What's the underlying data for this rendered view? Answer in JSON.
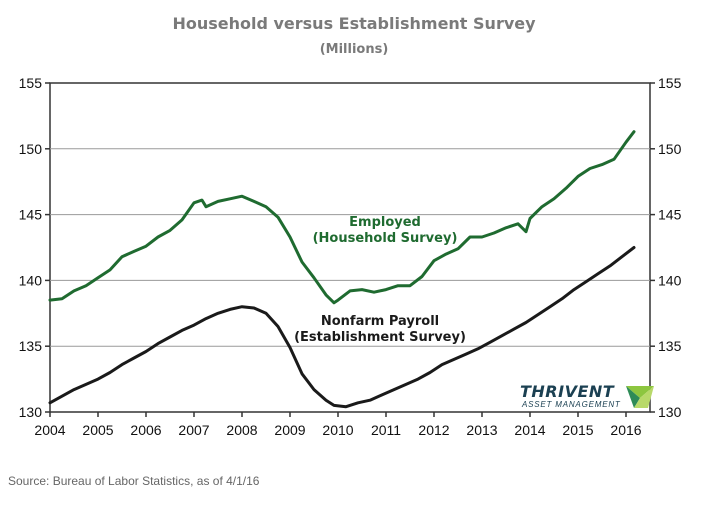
{
  "header": {
    "title": "Household versus Establishment Survey",
    "subtitle": "(Millions)"
  },
  "source": "Source: Bureau of Labor Statistics, as of 4/1/16",
  "logo": {
    "name": "THRIVENT",
    "tagline": "ASSET MANAGEMENT",
    "colors": [
      "#8dc63f",
      "#2e8b57",
      "#1b4052"
    ]
  },
  "chart_data": {
    "type": "line",
    "x_ticks": [
      "2004",
      "2005",
      "2006",
      "2007",
      "2008",
      "2009",
      "2010",
      "2011",
      "2012",
      "2013",
      "2014",
      "2015",
      "2016"
    ],
    "y_ticks": [
      130,
      135,
      140,
      145,
      150,
      155
    ],
    "ylim": [
      130,
      155
    ],
    "xlim": [
      "2004-01",
      "2016-07"
    ],
    "grid": "horizontal",
    "right_axis": true,
    "series": [
      {
        "name": "Employed\n(Household Survey)",
        "color": "#1f6b30",
        "points": [
          [
            "2004-01",
            138.5
          ],
          [
            "2004-04",
            138.6
          ],
          [
            "2004-07",
            139.2
          ],
          [
            "2004-10",
            139.6
          ],
          [
            "2005-01",
            140.2
          ],
          [
            "2005-04",
            140.8
          ],
          [
            "2005-07",
            141.8
          ],
          [
            "2005-10",
            142.2
          ],
          [
            "2006-01",
            142.6
          ],
          [
            "2006-04",
            143.3
          ],
          [
            "2006-07",
            143.8
          ],
          [
            "2006-10",
            144.6
          ],
          [
            "2007-01",
            145.9
          ],
          [
            "2007-03",
            146.1
          ],
          [
            "2007-04",
            145.6
          ],
          [
            "2007-07",
            146.0
          ],
          [
            "2007-10",
            146.2
          ],
          [
            "2008-01",
            146.4
          ],
          [
            "2008-04",
            146.0
          ],
          [
            "2008-07",
            145.6
          ],
          [
            "2008-10",
            144.8
          ],
          [
            "2009-01",
            143.3
          ],
          [
            "2009-04",
            141.4
          ],
          [
            "2009-07",
            140.2
          ],
          [
            "2009-10",
            138.9
          ],
          [
            "2009-12",
            138.3
          ],
          [
            "2010-01",
            138.5
          ],
          [
            "2010-04",
            139.2
          ],
          [
            "2010-07",
            139.3
          ],
          [
            "2010-10",
            139.1
          ],
          [
            "2011-01",
            139.3
          ],
          [
            "2011-04",
            139.6
          ],
          [
            "2011-07",
            139.6
          ],
          [
            "2011-10",
            140.3
          ],
          [
            "2012-01",
            141.5
          ],
          [
            "2012-04",
            142.0
          ],
          [
            "2012-07",
            142.4
          ],
          [
            "2012-10",
            143.3
          ],
          [
            "2013-01",
            143.3
          ],
          [
            "2013-04",
            143.6
          ],
          [
            "2013-07",
            144.0
          ],
          [
            "2013-10",
            144.3
          ],
          [
            "2013-12",
            143.7
          ],
          [
            "2014-01",
            144.7
          ],
          [
            "2014-04",
            145.6
          ],
          [
            "2014-07",
            146.2
          ],
          [
            "2014-10",
            147.0
          ],
          [
            "2015-01",
            147.9
          ],
          [
            "2015-04",
            148.5
          ],
          [
            "2015-07",
            148.8
          ],
          [
            "2015-10",
            149.2
          ],
          [
            "2016-01",
            150.5
          ],
          [
            "2016-03",
            151.3
          ]
        ]
      },
      {
        "name": "Nonfarm Payroll\n(Establishment Survey)",
        "color": "#1a1a1a",
        "points": [
          [
            "2004-01",
            130.7
          ],
          [
            "2004-04",
            131.2
          ],
          [
            "2004-07",
            131.7
          ],
          [
            "2004-10",
            132.1
          ],
          [
            "2005-01",
            132.5
          ],
          [
            "2005-04",
            133.0
          ],
          [
            "2005-07",
            133.6
          ],
          [
            "2005-10",
            134.1
          ],
          [
            "2006-01",
            134.6
          ],
          [
            "2006-04",
            135.2
          ],
          [
            "2006-07",
            135.7
          ],
          [
            "2006-10",
            136.2
          ],
          [
            "2007-01",
            136.6
          ],
          [
            "2007-04",
            137.1
          ],
          [
            "2007-07",
            137.5
          ],
          [
            "2007-10",
            137.8
          ],
          [
            "2008-01",
            138.0
          ],
          [
            "2008-04",
            137.9
          ],
          [
            "2008-07",
            137.5
          ],
          [
            "2008-10",
            136.5
          ],
          [
            "2009-01",
            134.9
          ],
          [
            "2009-04",
            132.9
          ],
          [
            "2009-07",
            131.7
          ],
          [
            "2009-10",
            130.9
          ],
          [
            "2009-12",
            130.5
          ],
          [
            "2010-03",
            130.4
          ],
          [
            "2010-06",
            130.7
          ],
          [
            "2010-09",
            130.9
          ],
          [
            "2010-12",
            131.3
          ],
          [
            "2011-03",
            131.7
          ],
          [
            "2011-06",
            132.1
          ],
          [
            "2011-09",
            132.5
          ],
          [
            "2011-12",
            133.0
          ],
          [
            "2012-03",
            133.6
          ],
          [
            "2012-06",
            134.0
          ],
          [
            "2012-09",
            134.4
          ],
          [
            "2012-12",
            134.8
          ],
          [
            "2013-03",
            135.3
          ],
          [
            "2013-06",
            135.8
          ],
          [
            "2013-09",
            136.3
          ],
          [
            "2013-12",
            136.8
          ],
          [
            "2014-03",
            137.4
          ],
          [
            "2014-06",
            138.0
          ],
          [
            "2014-09",
            138.6
          ],
          [
            "2014-12",
            139.3
          ],
          [
            "2015-03",
            139.9
          ],
          [
            "2015-06",
            140.5
          ],
          [
            "2015-09",
            141.1
          ],
          [
            "2015-12",
            141.8
          ],
          [
            "2016-03",
            142.5
          ]
        ]
      }
    ],
    "annotations": [
      {
        "series": 0,
        "lines": [
          "Employed",
          "(Household Survey)"
        ]
      },
      {
        "series": 1,
        "lines": [
          "Nonfarm Payroll",
          "(Establishment Survey)"
        ]
      }
    ]
  }
}
